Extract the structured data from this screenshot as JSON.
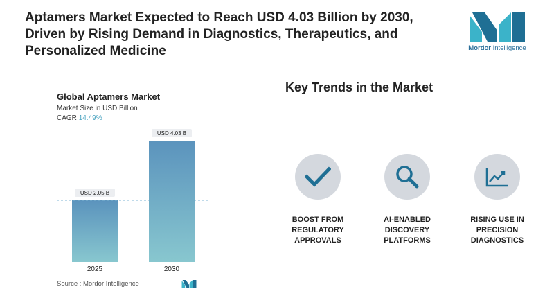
{
  "headline": [
    "Aptamers Market Expected to Reach USD 4.03 Billion by 2030,",
    "Driven by Rising Demand in Diagnostics, Therapeutics, and",
    "Personalized Medicine"
  ],
  "logo": {
    "brand_bold": "Mordor",
    "brand_rest": " Intelligence",
    "icon": "mordor-logo-icon"
  },
  "chart_data": {
    "type": "bar",
    "title": "Global Aptamers Market",
    "subtitle": "Market Size in USD Billion",
    "cagr_label": "CAGR",
    "cagr_value": "14.49%",
    "categories": [
      "2025",
      "2030"
    ],
    "values": [
      2.05,
      4.03
    ],
    "value_labels": [
      "USD 2.05 B",
      "USD 4.03 B"
    ],
    "ylim": [
      0,
      4.03
    ],
    "grid": false,
    "legend": "none",
    "reference_line": "dashed at 2025 value",
    "colors": {
      "bar_top": "#5b93bd",
      "bar_bottom": "#88c7cf",
      "reference": "#7fb6d4"
    }
  },
  "source": {
    "text": "Source :  Mordor Intelligence"
  },
  "trends": {
    "title": "Key Trends in the Market",
    "items": [
      {
        "label": "BOOST FROM\nREGULATORY\nAPPROVALS",
        "icon": "checkmark-icon"
      },
      {
        "label": "AI-ENABLED\nDISCOVERY\nPLATFORMS",
        "icon": "magnifier-icon"
      },
      {
        "label": "RISING USE IN\nPRECISION\nDIAGNOSTICS",
        "icon": "line-chart-icon"
      }
    ],
    "colors": {
      "circle": "#d4d8de",
      "icon": "#1f6f94"
    }
  }
}
